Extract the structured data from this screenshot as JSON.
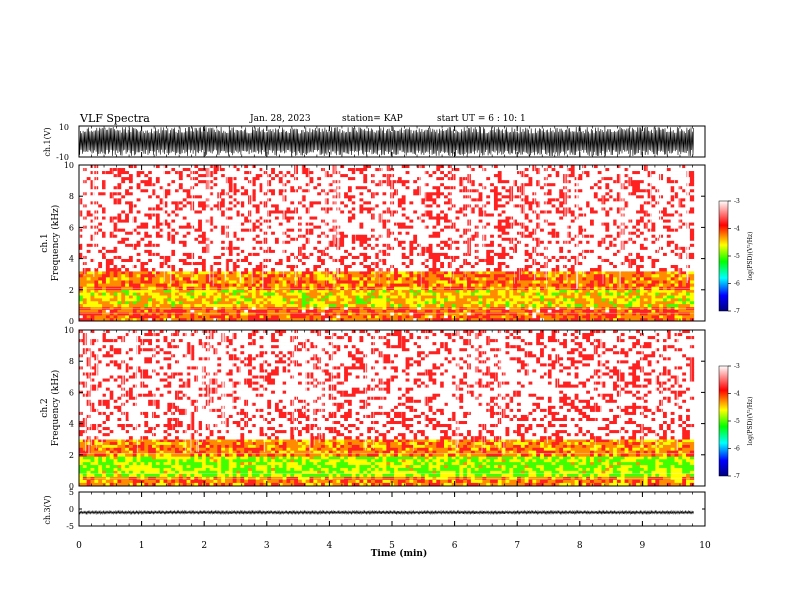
{
  "header": {
    "title": "VLF Spectra",
    "date": "Jan. 28, 2023",
    "station": "station= KAP",
    "start_time": "start UT =  6 : 10: 1"
  },
  "chart_data": [
    {
      "type": "line",
      "panel": "ch1-waveform",
      "ylabel": "ch.1(V)",
      "ylim": [
        -10,
        10
      ],
      "yticks": [
        -10,
        10
      ],
      "description_level": "high-amplitude noise band filling most of the range"
    },
    {
      "type": "heatmap",
      "panel": "ch1-spectrogram",
      "ylabel": "ch.1\nFrequency (kHz)",
      "ylim": [
        0,
        10
      ],
      "yticks": [
        0,
        2,
        4,
        6,
        8,
        10
      ],
      "bands": [
        {
          "range_khz": [
            0.0,
            0.9
          ],
          "level": -4.0
        },
        {
          "range_khz": [
            0.9,
            2.0
          ],
          "level": -4.6
        },
        {
          "range_khz": [
            2.0,
            3.2
          ],
          "level": -4.2
        },
        {
          "range_khz": [
            3.2,
            10.0
          ],
          "level": -3.3
        }
      ],
      "colorbar": {
        "label": "log(PSD)(V²/Hz)",
        "range": [
          -7,
          -3
        ],
        "ticks": [
          "-3",
          "-4",
          "-5",
          "-6",
          "-7"
        ]
      }
    },
    {
      "type": "heatmap",
      "panel": "ch2-spectrogram",
      "ylabel": "ch.2\nFrequency (kHz)",
      "ylim": [
        0,
        10
      ],
      "yticks": [
        0,
        2,
        4,
        6,
        8,
        10
      ],
      "bands": [
        {
          "range_khz": [
            0.0,
            0.6
          ],
          "level": -4.2
        },
        {
          "range_khz": [
            0.6,
            1.9
          ],
          "level": -5.0
        },
        {
          "range_khz": [
            1.9,
            3.0
          ],
          "level": -4.2
        },
        {
          "range_khz": [
            3.0,
            10.0
          ],
          "level": -3.3
        }
      ],
      "colorbar": {
        "label": "log(PSD)(V²/Hz)",
        "range": [
          -7,
          -3
        ],
        "ticks": [
          "-3",
          "-4",
          "-5",
          "-6",
          "-7"
        ]
      }
    },
    {
      "type": "line",
      "panel": "ch3-waveform",
      "ylabel": "ch.3(V)",
      "ylim": [
        -5,
        5
      ],
      "yticks": [
        -5,
        0,
        5
      ],
      "description_level": "flat near -1 V with small amplitude"
    }
  ],
  "xaxis": {
    "label": "Time (min)",
    "range": [
      0,
      10
    ],
    "ticks": [
      "0",
      "1",
      "2",
      "3",
      "4",
      "5",
      "6",
      "7",
      "8",
      "9",
      "10"
    ],
    "data_end": 9.82
  },
  "colors": {
    "background": "#ffffff",
    "axis": "#000000",
    "colormap": [
      "#000080",
      "#0000ff",
      "#00ffff",
      "#00ff00",
      "#ffff00",
      "#ff0000",
      "#ffffff"
    ]
  }
}
